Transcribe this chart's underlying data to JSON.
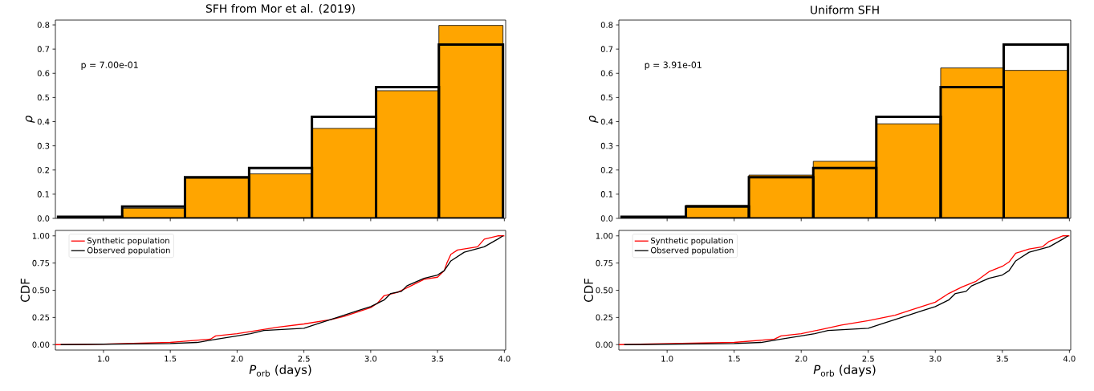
{
  "chart_data": [
    {
      "type": "histogram",
      "title": "SFH from Mor et al. (2019)",
      "ylabel": "*ρ*",
      "bins": [
        0.66,
        1.14,
        1.61,
        2.09,
        2.56,
        3.04,
        3.51,
        3.99
      ],
      "series": [
        {
          "color": "#ffa500",
          "values": [
            null,
            0.042,
            0.166,
            0.184,
            0.372,
            0.528,
            0.798
          ]
        },
        {
          "color": "#000000",
          "values": [
            0.007,
            0.049,
            0.17,
            0.208,
            0.42,
            0.543,
            0.719
          ]
        }
      ],
      "xlim": [
        0.64,
        4.01
      ],
      "ylim": [
        0,
        0.82
      ],
      "xticks": [
        {
          "value": 1.0,
          "label": null
        },
        {
          "value": 1.5,
          "label": null
        },
        {
          "value": 2.0,
          "label": null
        },
        {
          "value": 2.5,
          "label": null
        },
        {
          "value": 3.0,
          "label": null
        },
        {
          "value": 3.5,
          "label": null
        },
        {
          "value": 4.0,
          "label": null
        }
      ],
      "yticks": [
        {
          "value": 0,
          "label": "0.0"
        },
        0.1,
        0.2,
        0.3,
        0.4,
        0.5,
        0.6,
        0.7,
        0.8
      ],
      "tick_labels": "y",
      "annotations": [
        "p = 7.00e-01"
      ]
    },
    {
      "type": "histogram",
      "title": "Uniform SFH",
      "ylabel": "*ρ*",
      "bins": [
        0.66,
        1.14,
        1.61,
        2.09,
        2.56,
        3.04,
        3.51,
        3.99
      ],
      "series": [
        {
          "color": "#ffa500",
          "values": [
            null,
            0.054,
            0.179,
            0.236,
            0.391,
            0.622,
            0.612
          ]
        },
        {
          "color": "#000000",
          "values": [
            0.007,
            0.049,
            0.17,
            0.208,
            0.42,
            0.543,
            0.719
          ]
        }
      ],
      "xlim": [
        0.64,
        4.01
      ],
      "ylim": [
        0,
        0.82
      ],
      "xticks": [
        {
          "value": 1.0,
          "label": null
        },
        {
          "value": 1.5,
          "label": null
        },
        {
          "value": 2.0,
          "label": null
        },
        {
          "value": 2.5,
          "label": null
        },
        {
          "value": 3.0,
          "label": null
        },
        {
          "value": 3.5,
          "label": null
        },
        {
          "value": 4.0,
          "label": null
        }
      ],
      "yticks": [
        {
          "value": 0,
          "label": "0.0"
        },
        0.1,
        0.2,
        0.3,
        0.4,
        0.5,
        0.6,
        0.7,
        0.8
      ],
      "tick_labels": "y",
      "annotations": [
        "p = 3.91e-01"
      ]
    },
    {
      "type": "line",
      "xlabel": "*P*$_{orb}$ (days)",
      "ylabel": "CDF",
      "legend": "top left",
      "series": [
        {
          "name": "Synthetic population",
          "color": "#ff0000",
          "x": [
            0.64,
            1.0,
            1.5,
            1.6,
            1.8,
            1.84,
            2.0,
            2.15,
            2.3,
            2.5,
            2.7,
            2.8,
            2.9,
            3.0,
            3.05,
            3.1,
            3.2,
            3.3,
            3.4,
            3.5,
            3.55,
            3.57,
            3.6,
            3.65,
            3.8,
            3.85,
            3.95,
            4.0
          ],
          "values": [
            0,
            0.005,
            0.02,
            0.03,
            0.05,
            0.08,
            0.1,
            0.13,
            0.16,
            0.19,
            0.23,
            0.26,
            0.3,
            0.34,
            0.38,
            0.45,
            0.48,
            0.54,
            0.6,
            0.62,
            0.68,
            0.75,
            0.83,
            0.87,
            0.9,
            0.97,
            1.0,
            1.0
          ]
        },
        {
          "name": "Observed population",
          "color": "#000000",
          "x": [
            0.68,
            1.5,
            1.7,
            1.85,
            2.0,
            2.1,
            2.2,
            2.5,
            2.6,
            2.8,
            2.9,
            3.0,
            3.1,
            3.15,
            3.23,
            3.27,
            3.4,
            3.5,
            3.55,
            3.6,
            3.7,
            3.85,
            3.95,
            3.99
          ],
          "values": [
            0,
            0.01,
            0.02,
            0.05,
            0.08,
            0.1,
            0.13,
            0.15,
            0.19,
            0.27,
            0.31,
            0.35,
            0.41,
            0.47,
            0.49,
            0.54,
            0.61,
            0.64,
            0.68,
            0.77,
            0.85,
            0.9,
            0.97,
            1.0
          ]
        }
      ],
      "xlim": [
        0.64,
        4.01
      ],
      "ylim": [
        -0.05,
        1.05
      ],
      "xticks": [
        {
          "value": 1.0,
          "label": "1.0"
        },
        {
          "value": 1.5,
          "label": "1.5"
        },
        {
          "value": 2.0,
          "label": "2.0"
        },
        {
          "value": 2.5,
          "label": "2.5"
        },
        {
          "value": 3.0,
          "label": "3.0"
        },
        {
          "value": 3.5,
          "label": "3.5"
        },
        {
          "value": 4.0,
          "label": "4.0"
        }
      ],
      "yticks": [
        {
          "value": 0,
          "label": "0.00"
        },
        0.25,
        {
          "value": 0.5,
          "label": "0.50"
        },
        0.75,
        {
          "value": 1,
          "label": "1.00"
        }
      ]
    },
    {
      "type": "line",
      "xlabel": "*P*$_{orb}$ (days)",
      "ylabel": "CDF",
      "legend": "top left",
      "series": [
        {
          "name": "Synthetic population",
          "color": "#ff0000",
          "x": [
            0.64,
            1.5,
            1.8,
            1.85,
            2.0,
            2.15,
            2.3,
            2.5,
            2.7,
            2.8,
            3.0,
            3.1,
            3.2,
            3.3,
            3.4,
            3.5,
            3.55,
            3.6,
            3.7,
            3.8,
            3.85,
            3.95,
            4.0
          ],
          "values": [
            0,
            0.02,
            0.05,
            0.08,
            0.1,
            0.14,
            0.18,
            0.22,
            0.27,
            0.31,
            0.39,
            0.47,
            0.53,
            0.58,
            0.67,
            0.72,
            0.76,
            0.84,
            0.88,
            0.9,
            0.95,
            1.0,
            1.0
          ]
        },
        {
          "name": "Observed population",
          "color": "#000000",
          "x": [
            0.68,
            1.5,
            1.7,
            1.85,
            2.0,
            2.1,
            2.2,
            2.5,
            2.6,
            2.8,
            2.9,
            3.0,
            3.1,
            3.15,
            3.23,
            3.27,
            3.4,
            3.5,
            3.55,
            3.6,
            3.7,
            3.85,
            3.95,
            3.99
          ],
          "values": [
            0,
            0.01,
            0.02,
            0.05,
            0.08,
            0.1,
            0.13,
            0.15,
            0.19,
            0.27,
            0.31,
            0.35,
            0.41,
            0.47,
            0.49,
            0.54,
            0.61,
            0.64,
            0.68,
            0.77,
            0.85,
            0.9,
            0.97,
            1.0
          ]
        }
      ],
      "xlim": [
        0.64,
        4.01
      ],
      "ylim": [
        -0.05,
        1.05
      ],
      "xticks": [
        {
          "value": 1.0,
          "label": "1.0"
        },
        {
          "value": 1.5,
          "label": "1.5"
        },
        {
          "value": 2.0,
          "label": "2.0"
        },
        {
          "value": 2.5,
          "label": "2.5"
        },
        {
          "value": 3.0,
          "label": "3.0"
        },
        {
          "value": 3.5,
          "label": "3.5"
        },
        {
          "value": 4.0,
          "label": "4.0"
        }
      ],
      "yticks": [
        {
          "value": 0,
          "label": "0.00"
        },
        0.25,
        {
          "value": 0.5,
          "label": "0.50"
        },
        0.75,
        {
          "value": 1,
          "label": "1.00"
        }
      ]
    }
  ]
}
